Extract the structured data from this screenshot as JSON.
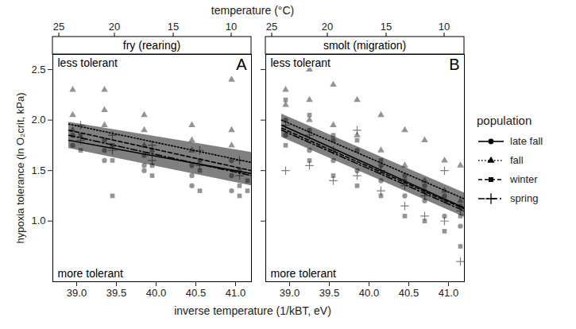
{
  "chart_data": {
    "type": "scatter",
    "xlabel": "inverse temperature (1/kBT, eV)",
    "ylabel": "hypoxia tolerance (ln O₂crit, kPa)",
    "x2label": "temperature (°C)",
    "xlim": [
      38.7,
      41.2
    ],
    "ylim": [
      0.4,
      2.65
    ],
    "xticks": [
      {
        "value": 39,
        "label": "39.0"
      },
      39.5,
      {
        "value": 40,
        "label": "40.0"
      },
      40.5,
      {
        "value": 41,
        "label": "41.0"
      }
    ],
    "x2ticks": [
      {
        "value": 38.78,
        "label": "25"
      },
      {
        "value": 39.48,
        "label": "20"
      },
      {
        "value": 40.22,
        "label": "15"
      },
      {
        "value": 40.95,
        "label": "10"
      }
    ],
    "yticks": [
      {
        "value": 1,
        "label": "1.0"
      },
      1.5,
      {
        "value": 2,
        "label": "2.0"
      },
      2.5
    ],
    "legend": "right",
    "legend_title": "population",
    "series": [
      {
        "name": "late fall",
        "color": "#000000",
        "marker": "circle",
        "line_style": "solid"
      },
      {
        "name": "fall",
        "color": "#000000",
        "marker": "triangle",
        "line_style": "dotted"
      },
      {
        "name": "winter",
        "color": "#000000",
        "marker": "square",
        "line_style": "dashed"
      },
      {
        "name": "spring",
        "color": "#000000",
        "marker": "plus",
        "line_style": "dashdot"
      }
    ],
    "panels": [
      {
        "letter": "A",
        "title": "fry (rearing)",
        "annotations": [
          "less tolerant",
          "more tolerant"
        ],
        "band": {
          "x": [
            38.9,
            41.2
          ],
          "lower": [
            1.72,
            1.35
          ],
          "upper": [
            1.98,
            1.68
          ],
          "color": "#555555"
        },
        "series": [
          {
            "name": "late fall",
            "x": [
              38.95,
              38.95,
              39.35,
              39.35,
              39.35,
              39.85,
              39.85,
              39.85,
              40.45,
              40.45,
              40.45,
              40.95,
              40.95,
              40.95
            ],
            "values": [
              1.85,
              1.75,
              1.8,
              1.7,
              1.6,
              1.65,
              1.55,
              1.5,
              1.55,
              1.45,
              1.35,
              1.45,
              1.3,
              1.6
            ],
            "fit": {
              "x": [
                38.9,
                41.2
              ],
              "values": [
                1.8,
                1.47
              ]
            }
          },
          {
            "name": "fall",
            "x": [
              38.95,
              38.95,
              38.95,
              39.35,
              39.35,
              39.35,
              39.85,
              39.85,
              39.85,
              40.45,
              40.45,
              40.45,
              40.95,
              40.95,
              40.95
            ],
            "values": [
              2.3,
              2.05,
              1.9,
              2.3,
              2.1,
              1.95,
              2.05,
              1.9,
              1.75,
              1.95,
              1.8,
              1.7,
              2.4,
              1.9,
              1.75
            ],
            "fit": {
              "x": [
                38.9,
                41.2
              ],
              "values": [
                1.96,
                1.58
              ]
            }
          },
          {
            "name": "winter",
            "x": [
              39.05,
              39.05,
              39.45,
              39.45,
              39.45,
              39.95,
              39.95,
              39.95,
              40.55,
              40.55,
              40.55,
              41.05,
              41.05,
              41.05,
              41.15,
              41.15
            ],
            "values": [
              1.85,
              1.7,
              1.75,
              1.6,
              1.25,
              1.7,
              1.55,
              1.45,
              1.6,
              1.5,
              1.3,
              1.5,
              1.35,
              1.25,
              1.4,
              1.3
            ],
            "fit": {
              "x": [
                38.9,
                41.2
              ],
              "values": [
                1.9,
                1.5
              ]
            }
          },
          {
            "name": "spring",
            "x": [
              39.05,
              39.05,
              39.45,
              39.45,
              39.95,
              39.95,
              40.55,
              40.55,
              41.05,
              41.05
            ],
            "values": [
              1.95,
              1.8,
              1.85,
              1.7,
              1.75,
              1.6,
              1.7,
              1.55,
              1.6,
              1.45
            ],
            "fit": {
              "x": [
                38.9,
                41.2
              ],
              "values": [
                1.85,
                1.45
              ]
            }
          }
        ]
      },
      {
        "letter": "B",
        "title": "smolt (migration)",
        "annotations": [
          "less tolerant",
          "more tolerant"
        ],
        "tick_labels": "x",
        "band": {
          "x": [
            38.9,
            41.2
          ],
          "lower": [
            1.83,
            1.04
          ],
          "upper": [
            2.06,
            1.28
          ],
          "color": "#555555"
        },
        "series": [
          {
            "name": "late fall",
            "x": [
              38.95,
              38.95,
              39.25,
              39.25,
              39.55,
              39.55,
              39.85,
              39.85,
              40.15,
              40.15,
              40.45,
              40.45,
              40.7,
              40.7,
              40.95,
              40.95,
              41.15,
              41.15
            ],
            "values": [
              2.0,
              1.85,
              1.9,
              1.7,
              1.8,
              1.6,
              1.7,
              1.5,
              1.55,
              1.4,
              1.45,
              1.25,
              1.35,
              1.2,
              1.25,
              1.05,
              1.15,
              0.95
            ],
            "fit": {
              "x": [
                38.9,
                41.2
              ],
              "values": [
                1.95,
                1.13
              ]
            }
          },
          {
            "name": "fall",
            "x": [
              38.95,
              38.95,
              39.25,
              39.25,
              39.25,
              39.55,
              39.55,
              39.85,
              39.85,
              40.15,
              40.15,
              40.45,
              40.45,
              40.7,
              40.7,
              40.95,
              40.95,
              41.15,
              41.15
            ],
            "values": [
              2.3,
              2.15,
              2.5,
              2.2,
              2.0,
              2.35,
              1.95,
              2.2,
              1.85,
              2.05,
              1.7,
              1.9,
              1.55,
              1.8,
              1.4,
              1.6,
              1.3,
              1.55,
              1.2
            ],
            "fit": {
              "x": [
                38.9,
                41.2
              ],
              "values": [
                2.0,
                1.22
              ]
            }
          },
          {
            "name": "winter",
            "x": [
              38.95,
              38.95,
              39.25,
              39.25,
              39.55,
              39.55,
              39.85,
              39.85,
              40.15,
              40.15,
              40.45,
              40.45,
              40.7,
              40.7,
              40.95,
              40.95,
              41.15,
              41.15
            ],
            "values": [
              2.2,
              1.75,
              2.05,
              1.6,
              1.85,
              1.45,
              1.8,
              1.35,
              1.6,
              1.25,
              1.4,
              1.05,
              1.3,
              1.0,
              1.2,
              0.9,
              1.05,
              0.75
            ],
            "fit": {
              "x": [
                38.9,
                41.2
              ],
              "values": [
                1.92,
                1.12
              ]
            }
          },
          {
            "name": "spring",
            "x": [
              38.95,
              38.95,
              39.25,
              39.25,
              39.55,
              39.55,
              39.85,
              39.85,
              40.15,
              40.15,
              40.45,
              40.45,
              40.7,
              40.7,
              40.95,
              40.95,
              41.15,
              41.15
            ],
            "values": [
              1.95,
              1.5,
              1.85,
              1.55,
              1.7,
              1.4,
              1.9,
              1.45,
              1.5,
              1.3,
              1.35,
              1.15,
              1.25,
              1.05,
              1.5,
              1.0,
              1.1,
              0.6
            ],
            "fit": {
              "x": [
                38.9,
                41.2
              ],
              "values": [
                1.9,
                1.1
              ]
            }
          }
        ]
      }
    ]
  }
}
